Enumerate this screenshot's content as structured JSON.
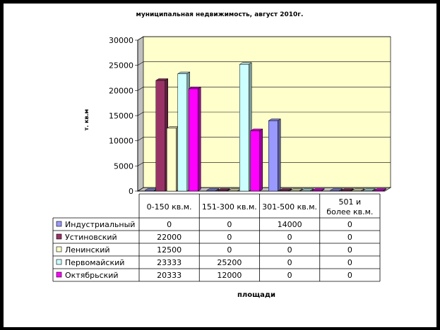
{
  "chart_data": {
    "type": "bar",
    "title": "муниципальная недвижимость, август 2010г.",
    "xlabel": "площади",
    "ylabel": "т. кв.м",
    "ylim": [
      0,
      30000
    ],
    "yticks": [
      "0",
      "5000",
      "10000",
      "15000",
      "20000",
      "25000",
      "30000"
    ],
    "categories": [
      "0-150 кв.м.",
      "151-300 кв.м.",
      "301-500 кв.м.",
      "501 и более кв.м."
    ],
    "series": [
      {
        "name": "Индустриальный",
        "values": [
          0,
          0,
          14000,
          0
        ],
        "color": "#9999ff"
      },
      {
        "name": "Устиновский",
        "values": [
          22000,
          0,
          0,
          0
        ],
        "color": "#993366"
      },
      {
        "name": "Ленинский",
        "values": [
          12500,
          0,
          0,
          0
        ],
        "color": "#ffffcc"
      },
      {
        "name": "Первомайский",
        "values": [
          23333,
          25200,
          0,
          0
        ],
        "color": "#ccffff"
      },
      {
        "name": "Октябрьский",
        "values": [
          20333,
          12000,
          0,
          0
        ],
        "color": "#ff00ff"
      }
    ],
    "table": [
      [
        "0",
        "0",
        "14000",
        "0"
      ],
      [
        "22000",
        "0",
        "0",
        "0"
      ],
      [
        "12500",
        "0",
        "0",
        "0"
      ],
      [
        "23333",
        "25200",
        "0",
        "0"
      ],
      [
        "20333",
        "12000",
        "0",
        "0"
      ]
    ],
    "plot_background": "#ffffcc",
    "grid": true,
    "legend": "data-table"
  }
}
